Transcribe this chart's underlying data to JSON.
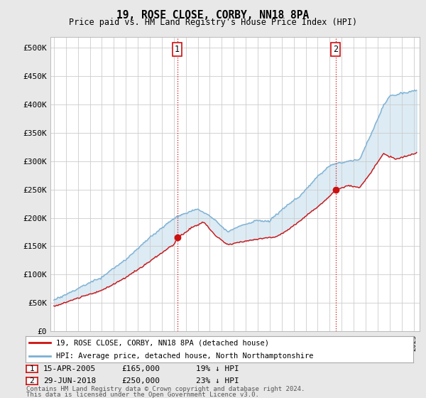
{
  "title": "19, ROSE CLOSE, CORBY, NN18 8PA",
  "subtitle": "Price paid vs. HM Land Registry's House Price Index (HPI)",
  "hpi_color": "#7ab0d4",
  "price_color": "#cc1111",
  "fill_color": "#ddeeff",
  "background_color": "#e8e8e8",
  "plot_bg_color": "#ffffff",
  "ylabel_ticks": [
    "£0",
    "£50K",
    "£100K",
    "£150K",
    "£200K",
    "£250K",
    "£300K",
    "£350K",
    "£400K",
    "£450K",
    "£500K"
  ],
  "ytick_values": [
    0,
    50000,
    100000,
    150000,
    200000,
    250000,
    300000,
    350000,
    400000,
    450000,
    500000
  ],
  "ylim": [
    0,
    520000
  ],
  "xlim_start": 1994.7,
  "xlim_end": 2025.5,
  "purchase1_year": 2005.29,
  "purchase1_price": 165000,
  "purchase1_date": "15-APR-2005",
  "purchase1_pct": "19%",
  "purchase2_year": 2018.5,
  "purchase2_price": 250000,
  "purchase2_date": "29-JUN-2018",
  "purchase2_pct": "23%",
  "legend_line1": "19, ROSE CLOSE, CORBY, NN18 8PA (detached house)",
  "legend_line2": "HPI: Average price, detached house, North Northamptonshire",
  "footer1": "Contains HM Land Registry data © Crown copyright and database right 2024.",
  "footer2": "This data is licensed under the Open Government Licence v3.0."
}
